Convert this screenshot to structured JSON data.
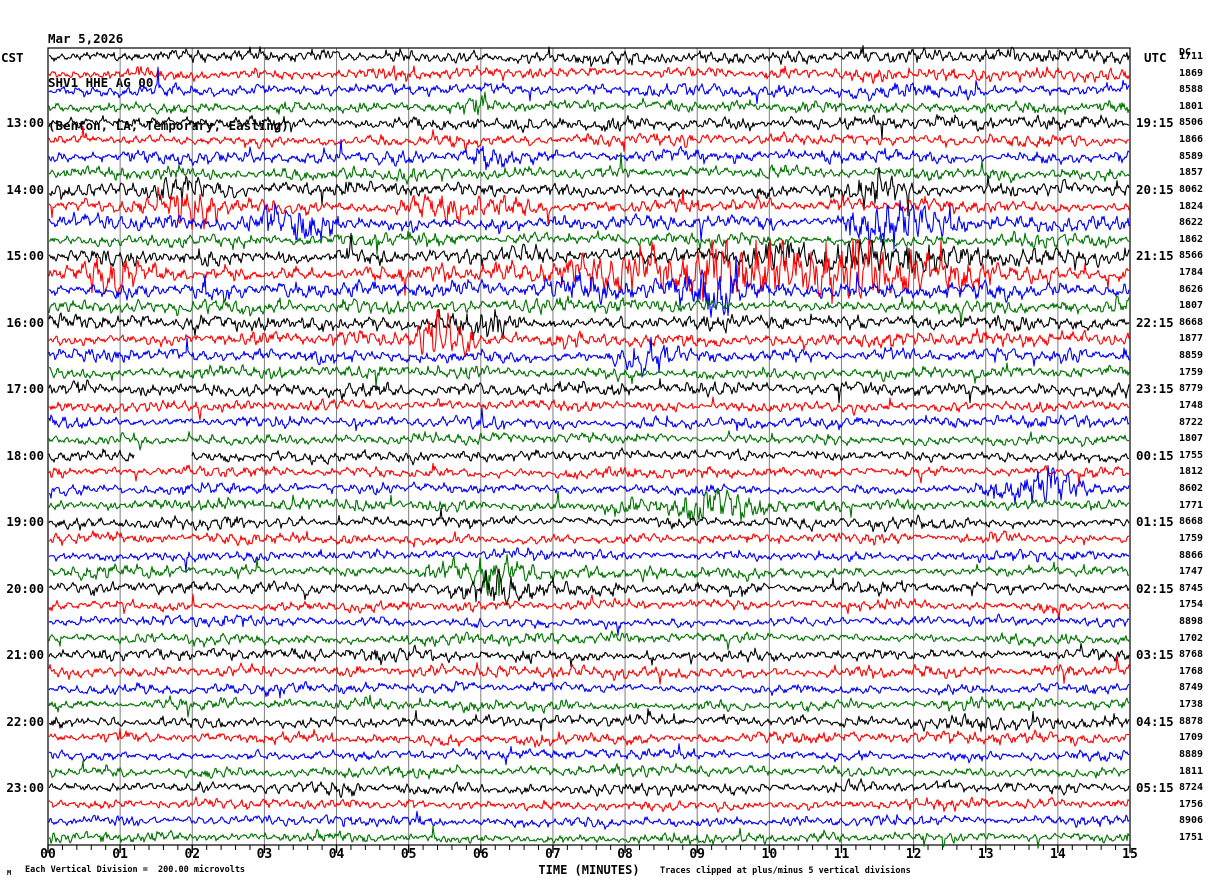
{
  "header": {
    "date": "Mar 5,2026",
    "station": "SHV1 HHE AG 00",
    "location": "(Benton, LA, Temporary, Easting)"
  },
  "axes": {
    "left_label": "CST",
    "right_label": "UTC",
    "x_title": "TIME (MINUTES)",
    "x_ticks": [
      "00",
      "01",
      "02",
      "03",
      "04",
      "05",
      "06",
      "07",
      "08",
      "09",
      "10",
      "11",
      "12",
      "13",
      "14",
      "15"
    ]
  },
  "footer": {
    "watermark": "M",
    "scale_note": "Each Vertical Division =  200.00 microvolts",
    "clip_note": "Traces clipped at plus/minus 5 vertical divisions"
  },
  "colors": {
    "black": "#000000",
    "red": "#fb0200",
    "blue": "#0000f8",
    "green": "#007400",
    "grid": "#7d7d7d",
    "frame": "#000000"
  },
  "chart_data": {
    "type": "line",
    "subtype": "helicorder-seismogram",
    "title": "SHV1 HHE AG 00 — Mar 5,2026 (Benton, LA, Temporary, Easting)",
    "xlabel": "TIME (MINUTES)",
    "x_range_minutes": [
      0,
      15
    ],
    "minutes_per_line": 15,
    "lines_per_hour": 4,
    "vertical_division_microvolts": 200.0,
    "clip_divisions": 5,
    "grid": true,
    "rows": [
      {
        "color": "black",
        "value": "1711",
        "overlay": "DC",
        "base_amp": 5.0,
        "events": [],
        "gaps": []
      },
      {
        "color": "red",
        "value": "1869",
        "base_amp": 4.5,
        "events": [],
        "gaps": []
      },
      {
        "color": "blue",
        "value": "8588",
        "base_amp": 5.0,
        "events": [],
        "gaps": []
      },
      {
        "color": "green",
        "value": "1801",
        "base_amp": 4.5,
        "events": [
          [
            5.8,
            6.25,
            9
          ]
        ],
        "gaps": []
      },
      {
        "color": "black",
        "cst": "13:00",
        "utc": "19:15",
        "value": "8506",
        "base_amp": 5.2,
        "events": [],
        "gaps": []
      },
      {
        "color": "red",
        "value": "1866",
        "base_amp": 4.5,
        "events": [],
        "gaps": []
      },
      {
        "color": "blue",
        "value": "8589",
        "base_amp": 5.0,
        "events": [
          [
            5.8,
            6.3,
            7
          ]
        ],
        "gaps": []
      },
      {
        "color": "green",
        "value": "1857",
        "base_amp": 4.8,
        "events": [],
        "gaps": []
      },
      {
        "color": "black",
        "cst": "14:00",
        "utc": "20:15",
        "value": "8062",
        "base_amp": 5.3,
        "events": [
          [
            11.2,
            11.9,
            12
          ],
          [
            1.5,
            2.5,
            6
          ]
        ],
        "gaps": []
      },
      {
        "color": "red",
        "value": "1824",
        "base_amp": 4.8,
        "events": [
          [
            1.55,
            2.35,
            16
          ],
          [
            5.0,
            6.5,
            7
          ]
        ],
        "gaps": []
      },
      {
        "color": "blue",
        "value": "8622",
        "base_amp": 5.2,
        "events": [
          [
            2.7,
            3.85,
            13
          ],
          [
            11.1,
            12.4,
            13
          ]
        ],
        "gaps": []
      },
      {
        "color": "green",
        "value": "1862",
        "base_amp": 5.0,
        "events": [],
        "gaps": []
      },
      {
        "color": "black",
        "cst": "15:00",
        "utc": "21:15",
        "value": "8566",
        "base_amp": 6.0,
        "events": [
          [
            8.8,
            12.8,
            7
          ]
        ],
        "gaps": []
      },
      {
        "color": "red",
        "value": "1784",
        "base_amp": 6.0,
        "events": [
          [
            7.4,
            12.6,
            24
          ],
          [
            0.4,
            1.4,
            8
          ]
        ],
        "gaps": []
      },
      {
        "color": "blue",
        "value": "8626",
        "base_amp": 5.8,
        "events": [
          [
            8.95,
            9.7,
            17
          ],
          [
            6.9,
            8.1,
            8
          ]
        ],
        "gaps": []
      },
      {
        "color": "green",
        "value": "1807",
        "base_amp": 5.3,
        "events": [],
        "gaps": []
      },
      {
        "color": "black",
        "cst": "16:00",
        "utc": "22:15",
        "value": "8668",
        "base_amp": 5.5,
        "events": [
          [
            5.4,
            6.4,
            6
          ]
        ],
        "gaps": []
      },
      {
        "color": "red",
        "value": "1877",
        "base_amp": 4.8,
        "events": [
          [
            4.95,
            6.15,
            13
          ]
        ],
        "gaps": []
      },
      {
        "color": "blue",
        "value": "8859",
        "base_amp": 4.8,
        "events": [
          [
            7.85,
            8.7,
            11
          ]
        ],
        "gaps": []
      },
      {
        "color": "green",
        "value": "1759",
        "base_amp": 4.5,
        "events": [],
        "gaps": []
      },
      {
        "color": "black",
        "cst": "17:00",
        "utc": "23:15",
        "value": "8779",
        "base_amp": 5.5,
        "events": [],
        "gaps": []
      },
      {
        "color": "red",
        "value": "1748",
        "base_amp": 4.2,
        "events": [],
        "gaps": []
      },
      {
        "color": "blue",
        "value": "8722",
        "base_amp": 4.2,
        "events": [],
        "gaps": []
      },
      {
        "color": "green",
        "value": "1807",
        "base_amp": 4.0,
        "events": [],
        "gaps": []
      },
      {
        "color": "black",
        "cst": "18:00",
        "utc": "00:15",
        "value": "1755",
        "base_amp": 4.3,
        "events": [],
        "gaps": [
          [
            1.18,
            1.98
          ]
        ]
      },
      {
        "color": "red",
        "value": "1812",
        "base_amp": 4.0,
        "events": [],
        "gaps": []
      },
      {
        "color": "blue",
        "value": "8602",
        "base_amp": 4.3,
        "events": [
          [
            13.2,
            14.6,
            9
          ]
        ],
        "gaps": []
      },
      {
        "color": "green",
        "value": "1771",
        "base_amp": 4.3,
        "events": [
          [
            8.2,
            10.1,
            11
          ]
        ],
        "gaps": []
      },
      {
        "color": "black",
        "cst": "19:00",
        "utc": "01:15",
        "value": "8668",
        "base_amp": 4.5,
        "events": [],
        "gaps": []
      },
      {
        "color": "red",
        "value": "1759",
        "base_amp": 4.0,
        "events": [],
        "gaps": []
      },
      {
        "color": "blue",
        "value": "8866",
        "base_amp": 3.8,
        "events": [],
        "gaps": []
      },
      {
        "color": "green",
        "value": "1747",
        "base_amp": 4.3,
        "events": [
          [
            5.5,
            6.7,
            10
          ]
        ],
        "gaps": []
      },
      {
        "color": "black",
        "cst": "20:00",
        "utc": "02:15",
        "value": "8745",
        "base_amp": 4.4,
        "events": [
          [
            5.85,
            7.3,
            11
          ]
        ],
        "gaps": []
      },
      {
        "color": "red",
        "value": "1754",
        "base_amp": 4.0,
        "events": [],
        "gaps": []
      },
      {
        "color": "blue",
        "value": "8898",
        "base_amp": 3.8,
        "events": [],
        "gaps": []
      },
      {
        "color": "green",
        "value": "1702",
        "base_amp": 4.0,
        "events": [],
        "gaps": []
      },
      {
        "color": "black",
        "cst": "21:00",
        "utc": "03:15",
        "value": "8768",
        "base_amp": 4.4,
        "events": [
          [
            4.3,
            5.2,
            7
          ]
        ],
        "gaps": []
      },
      {
        "color": "red",
        "value": "1768",
        "base_amp": 4.0,
        "events": [],
        "gaps": []
      },
      {
        "color": "blue",
        "value": "8749",
        "base_amp": 3.8,
        "events": [],
        "gaps": []
      },
      {
        "color": "green",
        "value": "1738",
        "base_amp": 4.0,
        "events": [],
        "gaps": []
      },
      {
        "color": "black",
        "cst": "22:00",
        "utc": "04:15",
        "value": "8878",
        "base_amp": 4.4,
        "events": [],
        "gaps": []
      },
      {
        "color": "red",
        "value": "1709",
        "base_amp": 4.0,
        "events": [],
        "gaps": []
      },
      {
        "color": "blue",
        "value": "8889",
        "base_amp": 3.8,
        "events": [],
        "gaps": []
      },
      {
        "color": "green",
        "value": "1811",
        "base_amp": 4.2,
        "events": [],
        "gaps": []
      },
      {
        "color": "black",
        "cst": "23:00",
        "utc": "05:15",
        "value": "8724",
        "base_amp": 4.4,
        "events": [],
        "gaps": []
      },
      {
        "color": "red",
        "value": "1756",
        "base_amp": 4.0,
        "events": [],
        "gaps": []
      },
      {
        "color": "blue",
        "value": "8906",
        "base_amp": 3.8,
        "events": [],
        "gaps": []
      },
      {
        "color": "green",
        "value": "1751",
        "base_amp": 4.0,
        "events": [],
        "gaps": []
      }
    ]
  }
}
